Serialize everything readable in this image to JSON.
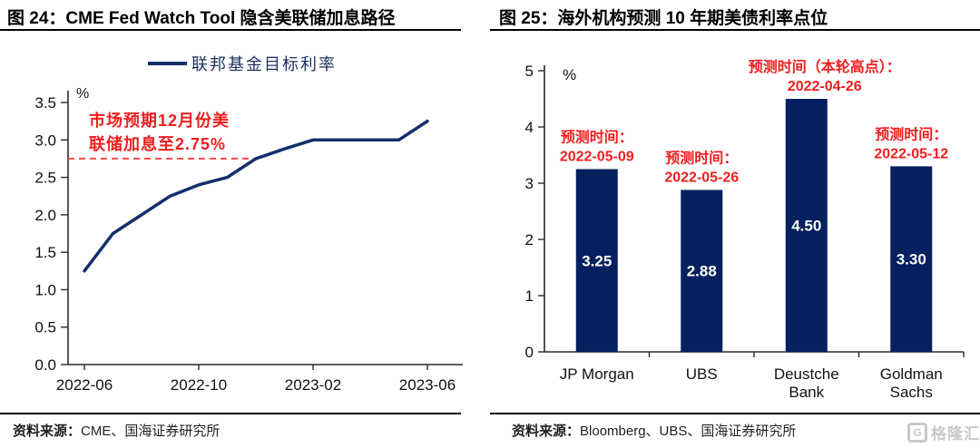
{
  "left_panel": {
    "title": "图 24：CME Fed Watch Tool 隐含美联储加息路径",
    "source_label": "资料来源：",
    "source_text": "CME、国海证券研究所"
  },
  "right_panel": {
    "title": "图 25：海外机构预测 10 年期美债利率点位",
    "source_label": "资料来源：",
    "source_text": "Bloomberg、UBS、国海证券研究所"
  },
  "watermark": {
    "icon": "G",
    "text": "格隆汇"
  },
  "colors": {
    "navy_line": "#142f6a",
    "navy_bar": "#04205e",
    "legend_text": "#1c2f5e",
    "red": "#f01e1e",
    "red_dashed": "#fa4a4a",
    "axis": "#2b2b2b",
    "tick_text": "#111111",
    "bar_value_text": "#ffffff",
    "watermark": "#c9c9c9"
  },
  "chart_data": [
    {
      "type": "line",
      "title": "图 24：CME Fed Watch Tool 隐含美联储加息路径",
      "unit_label": "%",
      "legend": [
        "联邦基金目标利率"
      ],
      "x": [
        "2022-06",
        "2022-07",
        "2022-08",
        "2022-09",
        "2022-10",
        "2022-11",
        "2022-12",
        "2023-01",
        "2023-02",
        "2023-03",
        "2023-04",
        "2023-05",
        "2023-06"
      ],
      "x_tick_labels": [
        "2022-06",
        "2022-10",
        "2023-02",
        "2023-06"
      ],
      "x_tick_indices": [
        0,
        4,
        8,
        12
      ],
      "y_ticks": [
        "0.0",
        "0.5",
        "1.0",
        "1.5",
        "2.0",
        "2.5",
        "3.0",
        "3.5"
      ],
      "ylim": [
        0,
        3.5
      ],
      "grid": false,
      "legend_position": "top",
      "series": [
        {
          "name": "联邦基金目标利率",
          "values": [
            1.25,
            1.75,
            2.0,
            2.25,
            2.4,
            2.5,
            2.75,
            2.88,
            3.0,
            3.0,
            3.0,
            3.0,
            3.25
          ]
        }
      ],
      "reference_line": {
        "value": 2.75,
        "style": "dashed",
        "label_lines": [
          "市场预期12月份美",
          "联储加息至2.75%"
        ]
      }
    },
    {
      "type": "bar",
      "title": "图 25：海外机构预测 10 年期美债利率点位",
      "unit_label": "%",
      "categories": [
        "JP Morgan",
        "UBS",
        "Deustche Bank",
        "Goldman Sachs"
      ],
      "category_label_lines": [
        [
          "JP Morgan"
        ],
        [
          "UBS"
        ],
        [
          "Deustche",
          "Bank"
        ],
        [
          "Goldman",
          "Sachs"
        ]
      ],
      "values": [
        3.25,
        2.88,
        4.5,
        3.3
      ],
      "value_labels": [
        "3.25",
        "2.88",
        "4.50",
        "3.30"
      ],
      "annotations": [
        [
          "预测时间：",
          "2022-05-09"
        ],
        [
          "预测时间：",
          "2022-05-26"
        ],
        [
          "预测时间（本轮高点）：",
          "2022-04-26"
        ],
        [
          "预测时间：",
          "2022-05-12"
        ]
      ],
      "y_ticks": [
        "0",
        "1",
        "2",
        "3",
        "4",
        "5"
      ],
      "ylim": [
        0,
        5
      ],
      "grid": false
    }
  ]
}
